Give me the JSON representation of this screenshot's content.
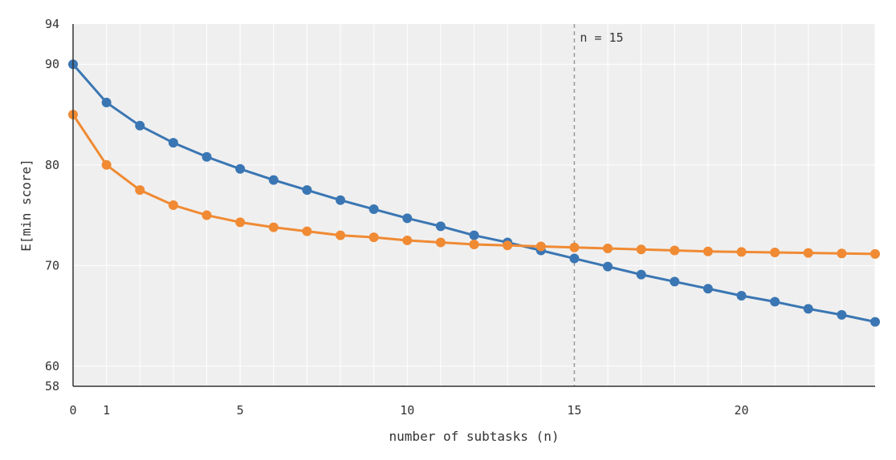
{
  "chart_data": {
    "type": "line",
    "title": "",
    "xlabel": "number of subtasks (n)",
    "ylabel": "E[min score]",
    "xlim": [
      0,
      24
    ],
    "ylim": [
      58,
      94
    ],
    "x_ticks": [
      0,
      1,
      5,
      10,
      15,
      20
    ],
    "y_ticks": [
      58,
      60,
      70,
      80,
      90,
      94
    ],
    "grid": true,
    "legend": "none",
    "x": [
      0,
      1,
      2,
      3,
      4,
      5,
      6,
      7,
      8,
      9,
      10,
      11,
      12,
      13,
      14,
      15,
      16,
      17,
      18,
      19,
      20,
      21,
      22,
      23,
      24
    ],
    "series": [
      {
        "name": "blue",
        "color": "#3a76b3",
        "values": [
          90.0,
          86.2,
          83.9,
          82.2,
          80.8,
          79.6,
          78.5,
          77.5,
          76.5,
          75.6,
          74.7,
          73.9,
          73.0,
          72.3,
          71.5,
          70.7,
          69.9,
          69.1,
          68.4,
          67.7,
          67.0,
          66.4,
          65.7,
          65.1,
          64.4
        ]
      },
      {
        "name": "orange",
        "color": "#f08a33",
        "values": [
          85.0,
          80.0,
          77.5,
          76.0,
          75.0,
          74.3,
          73.8,
          73.4,
          73.0,
          72.8,
          72.5,
          72.3,
          72.1,
          72.0,
          71.9,
          71.8,
          71.7,
          71.6,
          71.5,
          71.4,
          71.35,
          71.3,
          71.25,
          71.2,
          71.15
        ]
      }
    ],
    "annotations": [
      {
        "type": "vline",
        "x": 15,
        "label": "n = 15",
        "color": "#999999"
      }
    ]
  },
  "colors": {
    "plot_background": "#efefef",
    "gridline": "#ffffff",
    "axis": "#333333"
  }
}
